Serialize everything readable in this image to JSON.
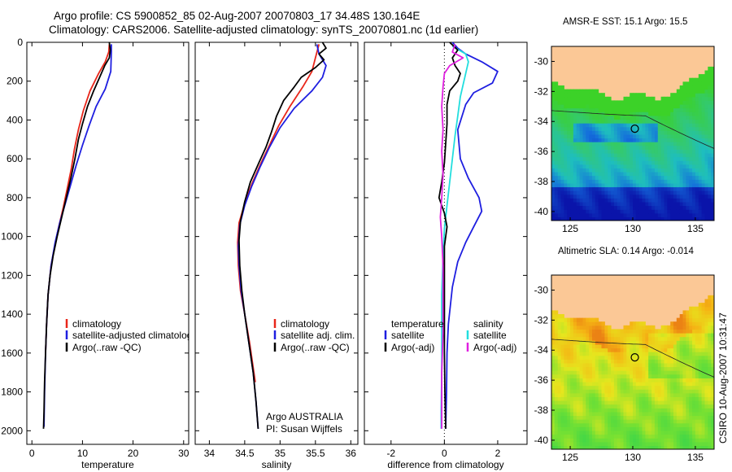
{
  "header": {
    "title_line1": "Argo profile: CS 5900852_85 02-Aug-2007 20070803_17 34.48S 130.164E",
    "title_line2": "Climatology: CARS2006. Satellite-adjusted climatology: synTS_20070801.nc (1d earlier)"
  },
  "stamp": "CSIRO 10-Aug-2007 10:31:47",
  "colors": {
    "climatology": "#e8261a",
    "satellite": "#1e1ee0",
    "argo": "#000000",
    "cyan": "#22dede",
    "magenta": "#e020e0",
    "land": "#fbc896"
  },
  "chart_data": [
    {
      "type": "line",
      "name": "temperature",
      "xlabel": "temperature",
      "xlim": [
        -1,
        31
      ],
      "ylim": [
        2070,
        0
      ],
      "xticks": [
        0,
        10,
        20,
        30
      ],
      "yticks": [
        0,
        200,
        400,
        600,
        800,
        1000,
        1200,
        1400,
        1600,
        1800,
        2000
      ],
      "legend": [
        "climatology",
        "satellite-adjusted climatology",
        "Argo(..raw -QC)"
      ],
      "series": [
        {
          "key": "climatology",
          "color": "climatology",
          "points": [
            [
              15.3,
              10
            ],
            [
              15.2,
              50
            ],
            [
              14.5,
              100
            ],
            [
              13.2,
              160
            ],
            [
              11.5,
              250
            ],
            [
              10.2,
              350
            ],
            [
              9.2,
              450
            ],
            [
              8.4,
              550
            ],
            [
              7.8,
              650
            ],
            [
              7.0,
              750
            ],
            [
              6.2,
              850
            ],
            [
              5.3,
              950
            ],
            [
              4.5,
              1050
            ],
            [
              3.8,
              1150
            ],
            [
              3.2,
              1300
            ],
            [
              2.9,
              1450
            ],
            [
              2.7,
              1600
            ]
          ]
        },
        {
          "key": "satellite",
          "color": "satellite",
          "points": [
            [
              15.7,
              10
            ],
            [
              15.7,
              50
            ],
            [
              15.6,
              150
            ],
            [
              14.5,
              240
            ],
            [
              12.7,
              330
            ],
            [
              11.3,
              430
            ],
            [
              10.0,
              530
            ],
            [
              8.8,
              630
            ],
            [
              7.7,
              730
            ],
            [
              6.6,
              830
            ],
            [
              5.5,
              930
            ],
            [
              4.6,
              1030
            ],
            [
              3.8,
              1150
            ],
            [
              3.2,
              1300
            ],
            [
              2.9,
              1450
            ],
            [
              2.7,
              1600
            ],
            [
              2.5,
              1800
            ],
            [
              2.4,
              1980
            ]
          ]
        },
        {
          "key": "argo",
          "color": "argo",
          "points": [
            [
              15.3,
              0
            ],
            [
              15.4,
              20
            ],
            [
              15.5,
              40
            ],
            [
              15.3,
              80
            ],
            [
              14.4,
              120
            ],
            [
              13.4,
              180
            ],
            [
              12.2,
              250
            ],
            [
              11.0,
              330
            ],
            [
              10.0,
              420
            ],
            [
              9.2,
              500
            ],
            [
              8.5,
              600
            ],
            [
              7.7,
              700
            ],
            [
              6.8,
              800
            ],
            [
              5.9,
              900
            ],
            [
              5.0,
              1000
            ],
            [
              4.2,
              1100
            ],
            [
              3.6,
              1200
            ],
            [
              3.2,
              1300
            ],
            [
              2.9,
              1450
            ],
            [
              2.7,
              1600
            ],
            [
              2.5,
              1750
            ],
            [
              2.4,
              1900
            ],
            [
              2.3,
              1990
            ]
          ]
        }
      ]
    },
    {
      "type": "line",
      "name": "salinity",
      "xlabel": "salinity",
      "xlim": [
        33.8,
        36.1
      ],
      "ylim": [
        2070,
        0
      ],
      "xticks": [
        34,
        34.5,
        35,
        35.5,
        36
      ],
      "legend": [
        "climatology",
        "satellite adj. clim.",
        "Argo(..raw -QC)"
      ],
      "footer": [
        "Argo AUSTRALIA",
        "PI: Susan Wijffels"
      ],
      "series": [
        {
          "key": "climatology",
          "color": "climatology",
          "points": [
            [
              35.55,
              10
            ],
            [
              35.5,
              80
            ],
            [
              35.45,
              150
            ],
            [
              35.32,
              230
            ],
            [
              35.14,
              330
            ],
            [
              34.98,
              430
            ],
            [
              34.85,
              530
            ],
            [
              34.72,
              630
            ],
            [
              34.6,
              730
            ],
            [
              34.5,
              830
            ],
            [
              34.42,
              930
            ],
            [
              34.4,
              1030
            ],
            [
              34.41,
              1150
            ],
            [
              34.44,
              1280
            ],
            [
              34.5,
              1400
            ],
            [
              34.57,
              1550
            ],
            [
              34.65,
              1750
            ]
          ]
        },
        {
          "key": "satellite",
          "color": "satellite",
          "points": [
            [
              35.52,
              10
            ],
            [
              35.55,
              60
            ],
            [
              35.65,
              120
            ],
            [
              35.6,
              180
            ],
            [
              35.45,
              250
            ],
            [
              35.2,
              340
            ],
            [
              35.0,
              440
            ],
            [
              34.85,
              540
            ],
            [
              34.72,
              640
            ],
            [
              34.6,
              740
            ],
            [
              34.5,
              840
            ],
            [
              34.43,
              940
            ],
            [
              34.41,
              1050
            ],
            [
              34.42,
              1150
            ],
            [
              34.45,
              1280
            ],
            [
              34.5,
              1400
            ],
            [
              34.56,
              1550
            ],
            [
              34.62,
              1700
            ],
            [
              34.66,
              1850
            ],
            [
              34.69,
              1990
            ]
          ]
        },
        {
          "key": "argo",
          "color": "argo",
          "points": [
            [
              35.6,
              0
            ],
            [
              35.65,
              30
            ],
            [
              35.55,
              60
            ],
            [
              35.62,
              90
            ],
            [
              35.5,
              130
            ],
            [
              35.3,
              180
            ],
            [
              35.2,
              230
            ],
            [
              35.05,
              300
            ],
            [
              34.95,
              380
            ],
            [
              34.88,
              460
            ],
            [
              34.8,
              540
            ],
            [
              34.7,
              620
            ],
            [
              34.58,
              720
            ],
            [
              34.5,
              820
            ],
            [
              34.44,
              920
            ],
            [
              34.42,
              1020
            ],
            [
              34.43,
              1150
            ],
            [
              34.46,
              1280
            ],
            [
              34.5,
              1400
            ],
            [
              34.56,
              1550
            ],
            [
              34.62,
              1700
            ],
            [
              34.66,
              1850
            ],
            [
              34.69,
              1990
            ]
          ]
        }
      ]
    },
    {
      "type": "line",
      "name": "difference",
      "xlabel": "difference from climatology",
      "xlim": [
        -3,
        3.1
      ],
      "ylim": [
        2070,
        0
      ],
      "xticks": [
        -2,
        0,
        2
      ],
      "zero_line": true,
      "legend_temperature": [
        "temperature",
        "satellite",
        "Argo(-adj)"
      ],
      "legend_salinity": [
        "salinity",
        "satellite",
        "Argo(-adj)"
      ],
      "series": [
        {
          "key": "temperature satellite",
          "color": "satellite",
          "points": [
            [
              0.3,
              0
            ],
            [
              0.5,
              30
            ],
            [
              0.8,
              60
            ],
            [
              1.4,
              100
            ],
            [
              2.0,
              150
            ],
            [
              1.8,
              210
            ],
            [
              1.1,
              260
            ],
            [
              0.8,
              320
            ],
            [
              0.5,
              450
            ],
            [
              0.6,
              600
            ],
            [
              0.9,
              700
            ],
            [
              1.3,
              800
            ],
            [
              1.4,
              870
            ],
            [
              1.1,
              950
            ],
            [
              0.8,
              1030
            ],
            [
              0.5,
              1130
            ],
            [
              0.3,
              1260
            ],
            [
              0.15,
              1450
            ],
            [
              0.1,
              1600
            ],
            [
              0.08,
              1800
            ],
            [
              0.05,
              1990
            ]
          ]
        },
        {
          "key": "salinity satellite",
          "color": "cyan",
          "points": [
            [
              0.3,
              20
            ],
            [
              0.8,
              60
            ],
            [
              0.9,
              100
            ],
            [
              0.8,
              160
            ],
            [
              0.7,
              220
            ],
            [
              0.6,
              280
            ],
            [
              0.5,
              380
            ],
            [
              0.4,
              480
            ],
            [
              0.3,
              600
            ],
            [
              0.2,
              720
            ],
            [
              0.1,
              840
            ],
            [
              0.0,
              960
            ],
            [
              -0.05,
              1100
            ],
            [
              -0.1,
              1300
            ],
            [
              -0.1,
              1500
            ],
            [
              -0.1,
              1700
            ],
            [
              -0.12,
              1900
            ],
            [
              -0.12,
              1990
            ]
          ]
        },
        {
          "key": "temperature Argo",
          "color": "argo",
          "points": [
            [
              0.2,
              0
            ],
            [
              0.5,
              40
            ],
            [
              0.3,
              80
            ],
            [
              0.4,
              120
            ],
            [
              0.6,
              160
            ],
            [
              0.5,
              200
            ],
            [
              0.2,
              250
            ],
            [
              0.1,
              320
            ],
            [
              0.1,
              420
            ],
            [
              0.05,
              520
            ],
            [
              0.0,
              620
            ],
            [
              -0.1,
              720
            ],
            [
              -0.2,
              800
            ],
            [
              0.0,
              880
            ],
            [
              0.1,
              950
            ],
            [
              0.0,
              1050
            ],
            [
              0.0,
              1200
            ],
            [
              0.0,
              1400
            ],
            [
              0.0,
              1600
            ],
            [
              0.02,
              1800
            ],
            [
              0.05,
              1990
            ]
          ]
        },
        {
          "key": "salinity Argo",
          "color": "magenta",
          "points": [
            [
              0.4,
              10
            ],
            [
              0.3,
              50
            ],
            [
              0.7,
              80
            ],
            [
              0.2,
              120
            ],
            [
              0.0,
              160
            ],
            [
              -0.05,
              230
            ],
            [
              -0.1,
              330
            ],
            [
              -0.05,
              450
            ],
            [
              -0.1,
              560
            ],
            [
              -0.05,
              680
            ],
            [
              -0.1,
              800
            ],
            [
              -0.15,
              900
            ],
            [
              -0.1,
              1000
            ],
            [
              -0.05,
              1150
            ],
            [
              -0.05,
              1300
            ],
            [
              -0.05,
              1500
            ],
            [
              -0.1,
              1700
            ],
            [
              -0.1,
              1990
            ]
          ]
        }
      ]
    },
    {
      "type": "heatmap",
      "name": "sst-map",
      "title": "AMSR-E SST: 15.1  Argo: 15.5",
      "xlim": [
        123.5,
        136.5
      ],
      "ylim": [
        -40.6,
        -29
      ],
      "xticks": [
        125,
        130,
        135
      ],
      "yticks": [
        -30,
        -32,
        -34,
        -36,
        -38,
        -40
      ],
      "marker": [
        130.164,
        -34.48
      ]
    },
    {
      "type": "heatmap",
      "name": "sla-map",
      "title": "Altimetric SLA: 0.14  Argo: -0.014",
      "xlim": [
        123.5,
        136.5
      ],
      "ylim": [
        -40.6,
        -29
      ],
      "xticks": [
        125,
        130,
        135
      ],
      "yticks": [
        -30,
        -32,
        -34,
        -36,
        -38,
        -40
      ],
      "marker": [
        130.164,
        -34.48
      ]
    }
  ]
}
